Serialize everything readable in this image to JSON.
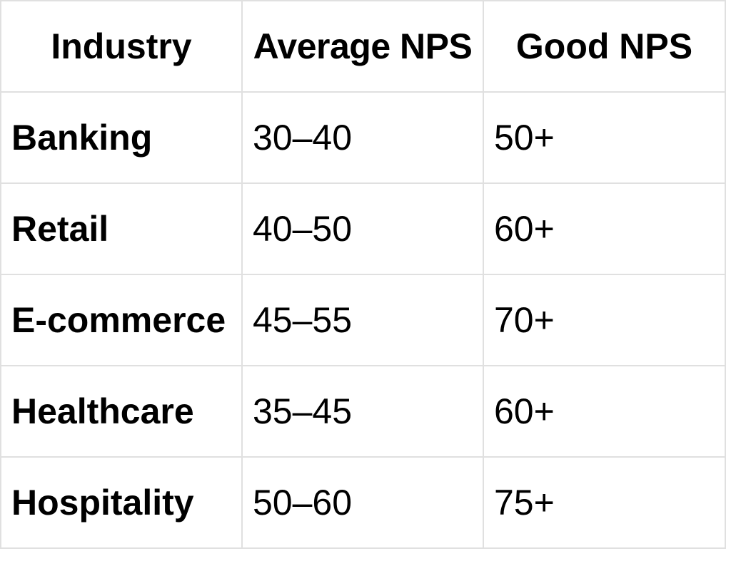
{
  "chart_data": {
    "type": "table",
    "columns": [
      "Industry",
      "Average NPS",
      "Good NPS"
    ],
    "rows": [
      [
        "Banking",
        "30–40",
        "50+"
      ],
      [
        "Retail",
        "40–50",
        "60+"
      ],
      [
        "E-commerce",
        "45–55",
        "70+"
      ],
      [
        "Healthcare",
        "35–45",
        "60+"
      ],
      [
        "Hospitality",
        "50–60",
        "75+"
      ]
    ]
  },
  "colors": {
    "border": "#e0e0e0",
    "text": "#000000",
    "background": "#ffffff"
  }
}
